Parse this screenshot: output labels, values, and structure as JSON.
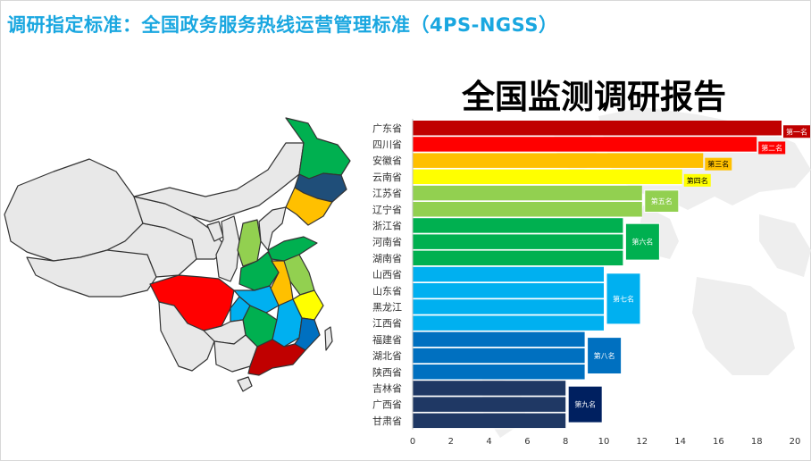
{
  "header": {
    "title": "调研指定标准：全国政务服务热线运营管理标准（4PS-NGSS）"
  },
  "chart_data": {
    "type": "bar",
    "orientation": "horizontal",
    "title": "全国监测调研报告",
    "categories": [
      "广东省",
      "四川省",
      "安徽省",
      "云南省",
      "江苏省",
      "辽宁省",
      "浙江省",
      "河南省",
      "湖南省",
      "山西省",
      "山东省",
      "黑龙江",
      "江西省",
      "福建省",
      "湖北省",
      "陕西省",
      "吉林省",
      "广西省",
      "甘肃省"
    ],
    "values": [
      19.3,
      18,
      15.2,
      14.1,
      12,
      12,
      11,
      11,
      11,
      10,
      10,
      10,
      10,
      9,
      9,
      9,
      8,
      8,
      8
    ],
    "bar_colors": [
      "#c00000",
      "#ff0000",
      "#ffc000",
      "#ffff00",
      "#92d050",
      "#92d050",
      "#00b050",
      "#00b050",
      "#00b050",
      "#00b0f0",
      "#00b0f0",
      "#00b0f0",
      "#00b0f0",
      "#0070c0",
      "#0070c0",
      "#0070c0",
      "#1f3864",
      "#1f3864",
      "#1f3864"
    ],
    "xlim": [
      0,
      20
    ],
    "xticks": [
      "0",
      "2",
      "4",
      "6",
      "8",
      "10",
      "12",
      "14",
      "16",
      "18",
      "20"
    ],
    "groups": [
      {
        "label": "第一名",
        "start": 0,
        "end": 0,
        "color": "#c00000",
        "text_color": "#ffffff"
      },
      {
        "label": "第二名",
        "start": 1,
        "end": 1,
        "color": "#ff0000",
        "text_color": "#ffffff"
      },
      {
        "label": "第三名",
        "start": 2,
        "end": 2,
        "color": "#ffc000",
        "text_color": "#000000"
      },
      {
        "label": "第四名",
        "start": 3,
        "end": 3,
        "color": "#ffff00",
        "text_color": "#000000"
      },
      {
        "label": "第五名",
        "start": 4,
        "end": 5,
        "color": "#92d050",
        "text_color": "#ffffff"
      },
      {
        "label": "第六名",
        "start": 6,
        "end": 8,
        "color": "#00b050",
        "text_color": "#ffffff"
      },
      {
        "label": "第七名",
        "start": 9,
        "end": 12,
        "color": "#00b0f0",
        "text_color": "#ffffff"
      },
      {
        "label": "第八名",
        "start": 13,
        "end": 15,
        "color": "#0070c0",
        "text_color": "#ffffff"
      },
      {
        "label": "第九名",
        "start": 16,
        "end": 18,
        "color": "#002060",
        "text_color": "#ffffff"
      }
    ]
  }
}
